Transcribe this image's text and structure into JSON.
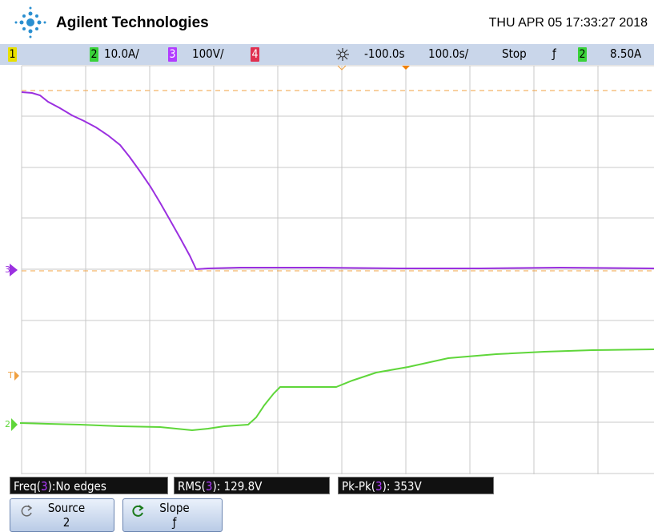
{
  "header": {
    "brand": "Agilent Technologies",
    "datetime": "THU APR 05 17:33:27 2018"
  },
  "status": {
    "ch1": "1",
    "ch2": "2",
    "ch2_scale": "10.0A/",
    "ch3": "3",
    "ch3_scale": "100V/",
    "ch4": "4",
    "delay": "-100.0s",
    "timebase": "100.0s/",
    "run_state": "Stop",
    "trigger_slope": "ƒ",
    "trigger_source": "2",
    "trigger_level": "8.50A"
  },
  "markers": {
    "ch3": "3",
    "trigger": "T",
    "ch2": "2"
  },
  "measurements": [
    {
      "prefix": "Freq(",
      "source": "3",
      "suffix": "):No edges"
    },
    {
      "prefix": "RMS(",
      "source": "3",
      "suffix": "): 129.8V"
    },
    {
      "prefix": "Pk-Pk(",
      "source": "3",
      "suffix": "): 353V"
    }
  ],
  "softkeys": [
    {
      "label": "Source",
      "value": "2"
    },
    {
      "label": "Slope",
      "value": "ƒ"
    }
  ]
}
